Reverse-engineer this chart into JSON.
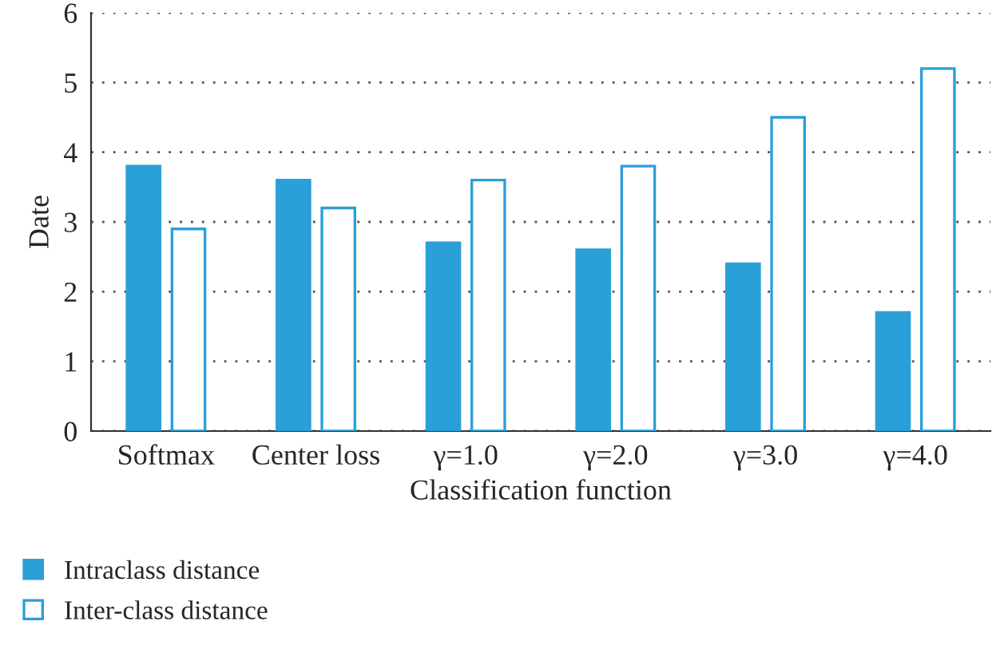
{
  "chart_data": {
    "type": "bar",
    "xlabel": "Classification function",
    "ylabel": "Date",
    "categories": [
      "Softmax",
      "Center loss",
      "γ=1.0",
      "γ=2.0",
      "γ=3.0",
      "γ=4.0"
    ],
    "series": [
      {
        "name": "Intraclass distance",
        "color": "#2a9fd8",
        "values": [
          3.8,
          3.6,
          2.7,
          2.6,
          2.4,
          1.7
        ]
      },
      {
        "name": "Inter-class distance",
        "color": "#2a9fd8",
        "line_style": "solid",
        "values": [
          2.9,
          3.2,
          3.6,
          3.8,
          4.5,
          5.2
        ]
      }
    ],
    "ylim": [
      0,
      6
    ],
    "yticks": [
      0,
      1,
      2,
      3,
      4,
      5,
      6
    ],
    "grid": "y",
    "legend": "bottom left"
  }
}
